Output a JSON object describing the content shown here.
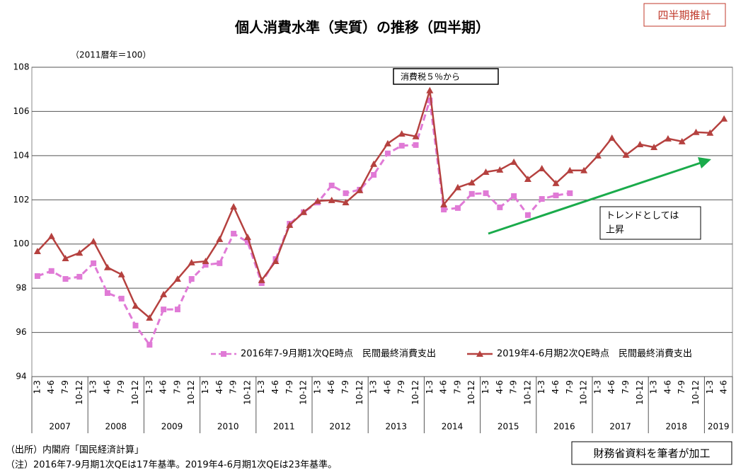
{
  "chart_data": {
    "type": "line",
    "title": "個人消費水準（実質）の推移（四半期）",
    "badge": "四半期推計",
    "unit": "（2011暦年＝100）",
    "tax_note": "消費税５％から",
    "trend_note": [
      "トレンドとしては",
      "上昇"
    ],
    "source": "（出所）内閣府「国民経済計算」",
    "note": "（注）2016年7-9月期1次QEは17年基準。2019年4-6月期1次QEは23年基準。",
    "credit": "財務省資料を筆者が加工",
    "categories": [
      "1-3",
      "4-6",
      "7-9",
      "10-12",
      "1-3",
      "4-6",
      "7-9",
      "10-12",
      "1-3",
      "4-6",
      "7-9",
      "10-12",
      "1-3",
      "4-6",
      "7-9",
      "10-12",
      "1-3",
      "4-6",
      "7-9",
      "10-12",
      "1-3",
      "4-6",
      "7-9",
      "10-12",
      "1-3",
      "4-6",
      "7-9",
      "10-12",
      "1-3",
      "4-6",
      "7-9",
      "10-12",
      "1-3",
      "4-6",
      "7-9",
      "10-12",
      "1-3",
      "4-6",
      "7-9",
      "10-12",
      "1-3",
      "4-6",
      "7-9",
      "10-12",
      "1-3",
      "4-6",
      "7-9",
      "10-12",
      "1-3",
      "4-6"
    ],
    "years": [
      "2007",
      "2008",
      "2009",
      "2010",
      "2011",
      "2012",
      "2013",
      "2014",
      "2015",
      "2016",
      "2017",
      "2018",
      "2019"
    ],
    "ylim": [
      94,
      108
    ],
    "yticks": [
      94,
      96,
      98,
      100,
      102,
      104,
      106,
      108
    ],
    "grid": true,
    "series": [
      {
        "name": "2016年7-9月期1次QE時点　民間最終消費支出",
        "color": "#e07ad6",
        "marker": "square",
        "dashed": true,
        "values": [
          98.55,
          98.78,
          98.42,
          98.52,
          99.13,
          97.78,
          97.53,
          96.31,
          95.44,
          97.04,
          97.04,
          98.42,
          99.06,
          99.13,
          100.47,
          100.09,
          98.23,
          99.32,
          100.92,
          101.44,
          101.88,
          102.65,
          102.3,
          102.46,
          103.13,
          104.1,
          104.45,
          104.48,
          106.5,
          101.56,
          101.63,
          102.27,
          102.3,
          101.66,
          102.17,
          101.31,
          102.04,
          102.2,
          102.3,
          null,
          null,
          null,
          null,
          null,
          null,
          null,
          null,
          null,
          null,
          null
        ]
      },
      {
        "name": "2019年4-6月期2次QE時点　民間最終消費支出",
        "color": "#b5413f",
        "marker": "triangle",
        "dashed": false,
        "values": [
          99.67,
          100.35,
          99.35,
          99.6,
          100.12,
          98.94,
          98.62,
          97.2,
          96.66,
          97.72,
          98.42,
          99.16,
          99.22,
          100.22,
          101.69,
          100.31,
          98.36,
          99.22,
          100.86,
          101.44,
          101.95,
          101.98,
          101.88,
          102.43,
          103.62,
          104.55,
          104.99,
          104.87,
          106.95,
          101.79,
          102.56,
          102.78,
          103.26,
          103.36,
          103.71,
          102.94,
          103.42,
          102.75,
          103.33,
          103.33,
          104.0,
          104.8,
          104.03,
          104.51,
          104.38,
          104.77,
          104.64,
          105.06,
          105.03,
          105.67
        ]
      }
    ]
  }
}
